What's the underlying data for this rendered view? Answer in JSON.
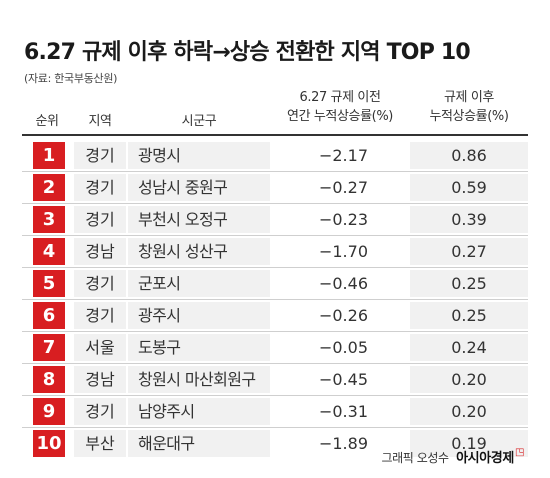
{
  "title": "6.27 규제 이후 하락→상승 전환한 지역 TOP 10",
  "source": "(자료: 한국부동산원)",
  "credit": {
    "graphic": "그래픽 오성수",
    "brand": "아시아경제"
  },
  "colors": {
    "rank_badge": "#d81e21",
    "shade": "#f1f1f1"
  },
  "chart_data": {
    "type": "table",
    "columns": [
      "순위",
      "지역",
      "시군구",
      "6.27 규제 이전 연간 누적상승률(%)",
      "규제 이후 누적상승률(%)"
    ],
    "column_lines": {
      "before": [
        "6.27 규제 이전",
        "연간 누적상승률(%)"
      ],
      "after": [
        "규제 이후",
        "누적상승률(%)"
      ]
    },
    "rows": [
      {
        "rank": "1",
        "region": "경기",
        "city": "광명시",
        "before": "−2.17",
        "after": "0.86"
      },
      {
        "rank": "2",
        "region": "경기",
        "city": "성남시 중원구",
        "before": "−0.27",
        "after": "0.59"
      },
      {
        "rank": "3",
        "region": "경기",
        "city": "부천시 오정구",
        "before": "−0.23",
        "after": "0.39"
      },
      {
        "rank": "4",
        "region": "경남",
        "city": "창원시 성산구",
        "before": "−1.70",
        "after": "0.27"
      },
      {
        "rank": "5",
        "region": "경기",
        "city": "군포시",
        "before": "−0.46",
        "after": "0.25"
      },
      {
        "rank": "6",
        "region": "경기",
        "city": "광주시",
        "before": "−0.26",
        "after": "0.25"
      },
      {
        "rank": "7",
        "region": "서울",
        "city": "도봉구",
        "before": "−0.05",
        "after": "0.24"
      },
      {
        "rank": "8",
        "region": "경남",
        "city": "창원시 마산회원구",
        "before": "−0.45",
        "after": "0.20"
      },
      {
        "rank": "9",
        "region": "경기",
        "city": "남양주시",
        "before": "−0.31",
        "after": "0.20"
      },
      {
        "rank": "10",
        "region": "부산",
        "city": "해운대구",
        "before": "−1.89",
        "after": "0.19"
      }
    ]
  }
}
